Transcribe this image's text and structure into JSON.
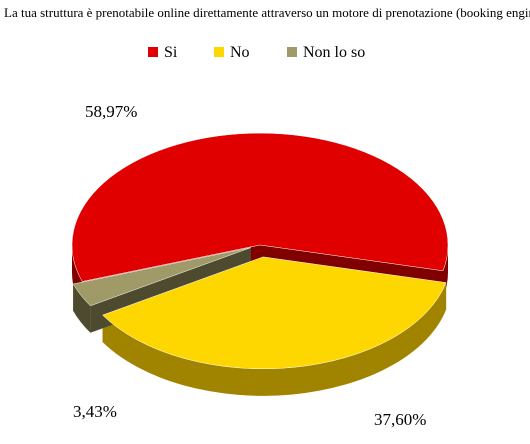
{
  "chart_data": {
    "type": "pie",
    "title": "La tua struttura è prenotabile online direttamente attraverso un motore di prenotazione (booking engine)?",
    "legend_position": "top",
    "slices": [
      {
        "label": "Si",
        "value": 58.97,
        "value_label": "58,97%",
        "color": "#e00000",
        "side_color": "#800000"
      },
      {
        "label": "No",
        "value": 37.6,
        "value_label": "37,60%",
        "color": "#ffd700",
        "side_color": "#a08400"
      },
      {
        "label": "Non lo so",
        "value": 3.43,
        "value_label": "3,43%",
        "color": "#a09a68",
        "side_color": "#4e4a30"
      }
    ]
  }
}
